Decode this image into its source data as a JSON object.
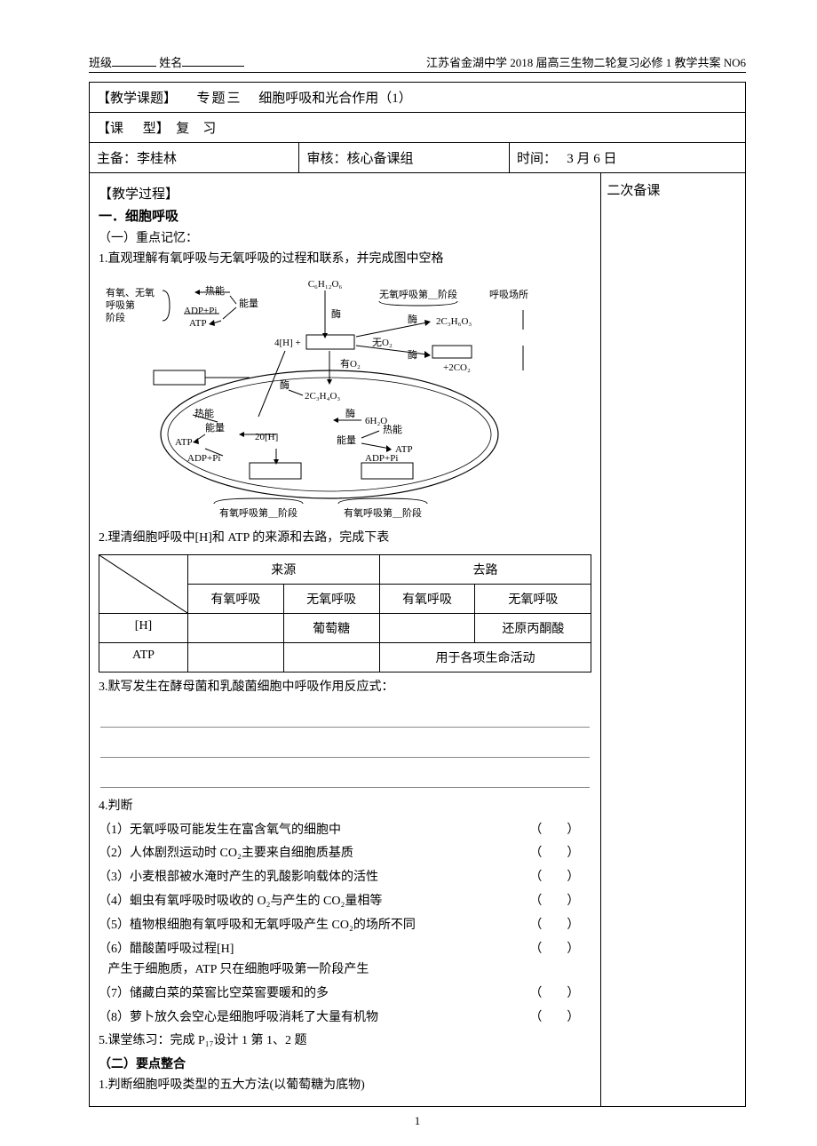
{
  "header": {
    "class_label": "班级",
    "name_label": "姓名",
    "right_text": "江苏省金湖中学 2018 届高三生物二轮复习必修 1 教学共案 NO6"
  },
  "title_row": {
    "label": "【教学课题】",
    "topic_num": "专题三",
    "topic_name": "细胞呼吸和光合作用（1）"
  },
  "type_row": {
    "label": "【课",
    "label2": "型】",
    "value": "复　习"
  },
  "meta_row": {
    "prepare_label": "主备：",
    "prepare_name": "李桂林",
    "review_label": "审核：",
    "review_name": "核心备课组",
    "time_label": "时间：",
    "time_value": "3 月 6 日"
  },
  "process_label": "【教学过程】",
  "notes_label": "二次备课",
  "section1": {
    "title": "一．细胞呼吸",
    "sub1": "（一）重点记忆：",
    "item1": "1.直观理解有氧呼吸与无氧呼吸的过程和联系，并完成图中空格",
    "item2": "2.理清细胞呼吸中[H]和 ATP 的来源和去路，完成下表",
    "item3": "3.默写发生在酵母菌和乳酸菌细胞中呼吸作用反应式：",
    "item4": "4.判断",
    "item5": "5.课堂练习：完成 P₁₇设计 1 第 1、2 题",
    "sub2": "（二）要点整合",
    "item6": "1.判断细胞呼吸类型的五大方法(以葡萄糖为底物)"
  },
  "diagram": {
    "glucose": "C₆H₁₂O₆",
    "aerobic_anaerobic_stage": "有氧、无氧\n呼吸第\n阶段",
    "heat": "热能",
    "energy": "能量",
    "adp_pi": "ADP+Pi",
    "atp": "ATP",
    "enzyme": "酶",
    "h4": "4[H] +",
    "anaerobic_stage": "无氧呼吸第＿阶段",
    "location": "呼吸场所",
    "no_o2": "无O₂",
    "c3h6o3": "2C₃H₆O₃",
    "co2_2": "+2CO₂",
    "has_o2": "有O₂",
    "c3h4o3": "2C₃H₄O₃",
    "h20": "20[H]",
    "h2o_6": "6H₂O",
    "aerobic_stage2": "有氧呼吸第＿阶段",
    "aerobic_stage3": "有氧呼吸第＿阶段"
  },
  "table": {
    "source": "来源",
    "dest": "去路",
    "aerobic": "有氧呼吸",
    "anaerobic": "无氧呼吸",
    "h_label": "[H]",
    "h_anaerobic_src": "葡萄糖",
    "h_anaerobic_dest": "还原丙酮酸",
    "atp_label": "ATP",
    "atp_dest": "用于各项生命活动"
  },
  "judgments": [
    "（1）无氧呼吸可能发生在富含氧气的细胞中",
    "（2）人体剧烈运动时 CO₂主要来自细胞质基质",
    "（3）小麦根部被水淹时产生的乳酸影响载体的活性",
    "（4）蛔虫有氧呼吸时吸收的 O₂与产生的 CO₂量相等",
    "（5）植物根细胞有氧呼吸和无氧呼吸产生 CO₂的场所不同",
    "（6）醋酸菌呼吸过程[H]产生于细胞质，ATP 只在细胞呼吸第一阶段产生",
    "（7）储藏白菜的菜窖比空菜窖要暖和的多",
    "（8）萝卜放久会空心是细胞呼吸消耗了大量有机物"
  ],
  "page_number": "1"
}
